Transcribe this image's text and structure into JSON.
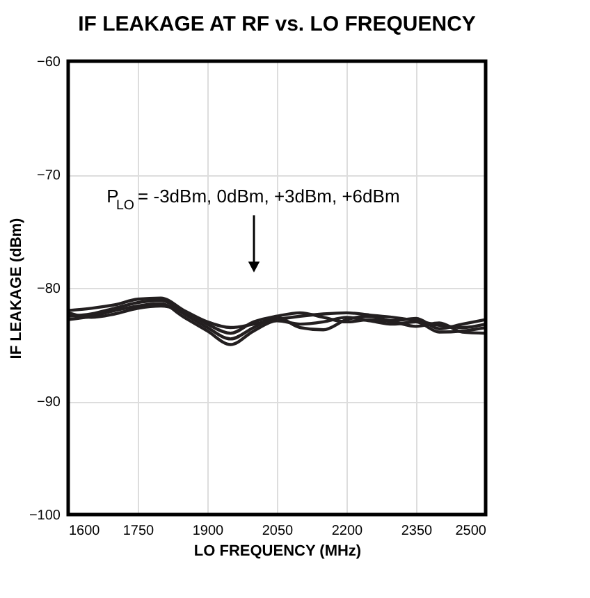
{
  "chart_data": {
    "type": "line",
    "title": "IF LEAKAGE AT RF vs. LO FREQUENCY",
    "xlabel": "LO FREQUENCY (MHz)",
    "ylabel": "IF LEAKAGE (dBm)",
    "x": [
      1600,
      1650,
      1700,
      1750,
      1800,
      1850,
      1900,
      1950,
      2000,
      2050,
      2100,
      2150,
      2200,
      2250,
      2300,
      2350,
      2400,
      2450,
      2500
    ],
    "series": [
      {
        "color": "#231f20",
        "values": [
          -82.0,
          -81.8,
          -81.5,
          -81.0,
          -80.9,
          -82.0,
          -83.0,
          -83.5,
          -83.2,
          -82.8,
          -82.5,
          -82.3,
          -82.2,
          -82.4,
          -82.6,
          -82.9,
          -83.3,
          -83.5,
          -83.2
        ]
      },
      {
        "color": "#231f20",
        "values": [
          -82.5,
          -82.3,
          -81.8,
          -81.3,
          -81.1,
          -82.3,
          -83.5,
          -84.5,
          -83.5,
          -82.6,
          -83.5,
          -83.7,
          -82.8,
          -82.5,
          -82.9,
          -82.7,
          -83.6,
          -83.2,
          -82.8
        ]
      },
      {
        "color": "#231f20",
        "values": [
          -82.8,
          -82.5,
          -82.0,
          -81.6,
          -81.4,
          -82.6,
          -83.8,
          -85.0,
          -83.8,
          -82.9,
          -83.2,
          -83.0,
          -82.6,
          -82.9,
          -83.2,
          -83.0,
          -83.9,
          -83.8,
          -83.5
        ]
      },
      {
        "color": "#231f20",
        "values": [
          -82.2,
          -82.6,
          -82.3,
          -81.8,
          -81.6,
          -82.1,
          -83.2,
          -84.0,
          -83.0,
          -82.5,
          -82.2,
          -82.6,
          -83.0,
          -82.8,
          -83.0,
          -83.4,
          -83.1,
          -83.9,
          -84.0
        ]
      }
    ],
    "xlim": [
      1600,
      2500
    ],
    "xticks": [
      1600,
      1750,
      1900,
      2050,
      2200,
      2350,
      2500
    ],
    "ylim": [
      -100,
      -60
    ],
    "yticks": [
      -100,
      -90,
      -80,
      -70,
      -60
    ],
    "grid": true,
    "marker": "none",
    "line_style": "solid",
    "annotations": [
      "P$_{LO}$ = -3dBm, 0dBm, +3dBm, +6dBm"
    ]
  }
}
